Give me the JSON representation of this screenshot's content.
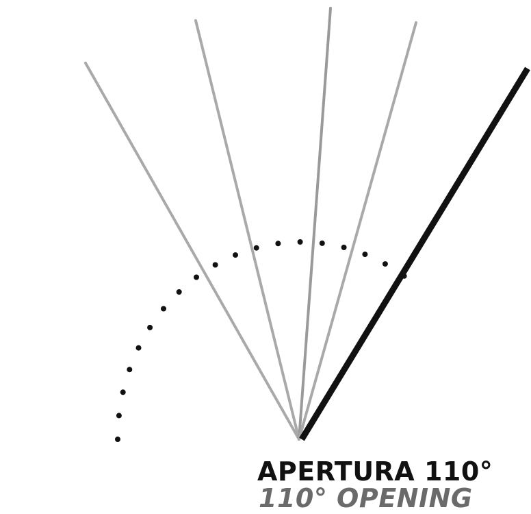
{
  "title": "",
  "caption": {
    "primary": "APERTURA 110°",
    "secondary": "110° OPENING"
  },
  "diagram": {
    "opening_angle_deg": 110,
    "colors": {
      "ground": "#111111",
      "door_final": "#111111",
      "door_intermediate": "#a8a8a8",
      "arc": "#111111"
    }
  }
}
